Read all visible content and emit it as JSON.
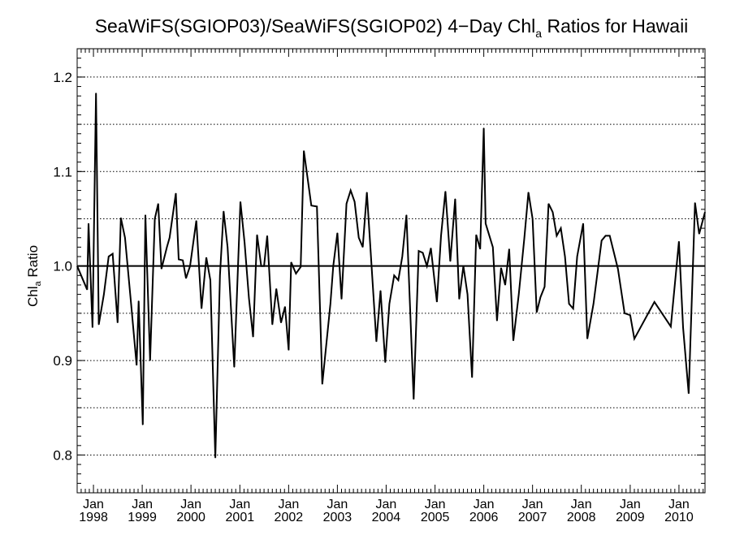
{
  "chart_data": {
    "type": "line",
    "title": {
      "prefix": "SeaWiFS(SGIOP03)/SeaWiFS(SGIOP02) 4−Day Chl",
      "subscript": "a",
      "suffix": " Ratios for Hawaii"
    },
    "ylabel": {
      "prefix": "Chl",
      "subscript": "a",
      "suffix": " Ratio"
    },
    "xlabel": "",
    "x_range": [
      "1997-09-01",
      "2010-07-15"
    ],
    "ylim": [
      0.76,
      1.23
    ],
    "y_ticks": [
      0.8,
      0.9,
      1.0,
      1.1,
      1.2
    ],
    "y_tick_labels": [
      "0.8",
      "0.9",
      "1.0",
      "1.1",
      "1.2"
    ],
    "x_ticks": [
      "1998-01-01",
      "1999-01-01",
      "2000-01-01",
      "2001-01-01",
      "2002-01-01",
      "2003-01-01",
      "2004-01-01",
      "2005-01-01",
      "2006-01-01",
      "2007-01-01",
      "2008-01-01",
      "2009-01-01",
      "2010-01-01"
    ],
    "x_tick_labels": [
      [
        "Jan",
        "1998"
      ],
      [
        "Jan",
        "1999"
      ],
      [
        "Jan",
        "2000"
      ],
      [
        "Jan",
        "2001"
      ],
      [
        "Jan",
        "2002"
      ],
      [
        "Jan",
        "2003"
      ],
      [
        "Jan",
        "2004"
      ],
      [
        "Jan",
        "2005"
      ],
      [
        "Jan",
        "2006"
      ],
      [
        "Jan",
        "2007"
      ],
      [
        "Jan",
        "2008"
      ],
      [
        "Jan",
        "2009"
      ],
      [
        "Jan",
        "2010"
      ]
    ],
    "grid": {
      "y_dotted": true,
      "y_minor": [
        0.85,
        0.95,
        1.05,
        1.15
      ],
      "x": false
    },
    "reference_line": 1.0,
    "series": [
      {
        "color": "#000000",
        "points": [
          [
            "1997-09-01",
            1.0
          ],
          [
            "1997-11-15",
            0.975
          ],
          [
            "1997-11-25",
            1.045
          ],
          [
            "1997-12-25",
            0.935
          ],
          [
            "1998-01-20",
            1.183
          ],
          [
            "1998-02-10",
            0.938
          ],
          [
            "1998-03-20",
            0.97
          ],
          [
            "1998-04-25",
            1.01
          ],
          [
            "1998-05-25",
            1.013
          ],
          [
            "1998-07-01",
            0.94
          ],
          [
            "1998-07-25",
            1.051
          ],
          [
            "1998-08-25",
            1.03
          ],
          [
            "1998-10-10",
            0.96
          ],
          [
            "1998-11-20",
            0.895
          ],
          [
            "1998-12-05",
            0.963
          ],
          [
            "1999-01-05",
            0.832
          ],
          [
            "1999-01-25",
            1.054
          ],
          [
            "1999-03-01",
            0.9
          ],
          [
            "1999-04-05",
            1.05
          ],
          [
            "1999-05-01",
            1.066
          ],
          [
            "1999-05-25",
            0.997
          ],
          [
            "1999-07-05",
            1.02
          ],
          [
            "1999-07-25",
            1.03
          ],
          [
            "1999-09-10",
            1.077
          ],
          [
            "1999-10-01",
            1.007
          ],
          [
            "1999-11-01",
            1.006
          ],
          [
            "1999-11-25",
            0.987
          ],
          [
            "1999-12-25",
            1.0
          ],
          [
            "2000-02-10",
            1.048
          ],
          [
            "2000-03-20",
            0.955
          ],
          [
            "2000-04-25",
            1.009
          ],
          [
            "2000-05-25",
            0.985
          ],
          [
            "2000-07-01",
            0.797
          ],
          [
            "2000-08-05",
            0.99
          ],
          [
            "2000-09-01",
            1.058
          ],
          [
            "2000-10-01",
            1.02
          ],
          [
            "2000-11-20",
            0.893
          ],
          [
            "2001-01-05",
            1.068
          ],
          [
            "2001-02-05",
            1.025
          ],
          [
            "2001-03-10",
            0.966
          ],
          [
            "2001-04-10",
            0.925
          ],
          [
            "2001-05-10",
            1.033
          ],
          [
            "2001-06-10",
            1.0
          ],
          [
            "2001-07-01",
            1.0
          ],
          [
            "2001-07-25",
            1.032
          ],
          [
            "2001-09-01",
            0.938
          ],
          [
            "2001-10-01",
            0.976
          ],
          [
            "2001-11-05",
            0.94
          ],
          [
            "2001-12-05",
            0.957
          ],
          [
            "2002-01-01",
            0.911
          ],
          [
            "2002-01-20",
            1.004
          ],
          [
            "2002-02-25",
            0.992
          ],
          [
            "2002-04-01",
            0.999
          ],
          [
            "2002-04-25",
            1.122
          ],
          [
            "2002-06-20",
            1.064
          ],
          [
            "2002-08-01",
            1.063
          ],
          [
            "2002-09-10",
            0.875
          ],
          [
            "2002-11-10",
            0.96
          ],
          [
            "2002-12-01",
            1.0
          ],
          [
            "2003-01-01",
            1.035
          ],
          [
            "2003-02-01",
            0.965
          ],
          [
            "2003-03-10",
            1.066
          ],
          [
            "2003-04-10",
            1.08
          ],
          [
            "2003-05-10",
            1.068
          ],
          [
            "2003-06-10",
            1.03
          ],
          [
            "2003-07-10",
            1.02
          ],
          [
            "2003-08-10",
            1.078
          ],
          [
            "2003-10-20",
            0.92
          ],
          [
            "2003-11-20",
            0.974
          ],
          [
            "2003-12-25",
            0.898
          ],
          [
            "2004-01-25",
            0.96
          ],
          [
            "2004-03-01",
            0.99
          ],
          [
            "2004-04-01",
            0.985
          ],
          [
            "2004-05-01",
            1.01
          ],
          [
            "2004-06-01",
            1.054
          ],
          [
            "2004-07-25",
            0.859
          ],
          [
            "2004-09-01",
            1.016
          ],
          [
            "2004-10-01",
            1.014
          ],
          [
            "2004-11-01",
            1.0
          ],
          [
            "2004-12-01",
            1.019
          ],
          [
            "2005-01-15",
            0.962
          ],
          [
            "2005-02-15",
            1.032
          ],
          [
            "2005-03-20",
            1.079
          ],
          [
            "2005-04-25",
            1.005
          ],
          [
            "2005-06-01",
            1.071
          ],
          [
            "2005-07-01",
            0.965
          ],
          [
            "2005-08-01",
            1.0
          ],
          [
            "2005-09-01",
            0.97
          ],
          [
            "2005-10-05",
            0.882
          ],
          [
            "2005-11-05",
            1.033
          ],
          [
            "2005-12-05",
            1.018
          ],
          [
            "2006-01-01",
            1.146
          ],
          [
            "2006-01-15",
            1.045
          ],
          [
            "2006-03-10",
            1.02
          ],
          [
            "2006-04-10",
            0.942
          ],
          [
            "2006-05-10",
            0.998
          ],
          [
            "2006-06-10",
            0.98
          ],
          [
            "2006-07-10",
            1.018
          ],
          [
            "2006-08-10",
            0.921
          ],
          [
            "2006-09-20",
            0.97
          ],
          [
            "2006-11-01",
            1.03
          ],
          [
            "2006-12-01",
            1.078
          ],
          [
            "2007-01-01",
            1.05
          ],
          [
            "2007-02-01",
            0.951
          ],
          [
            "2007-03-01",
            0.967
          ],
          [
            "2007-04-01",
            0.978
          ],
          [
            "2007-05-01",
            1.066
          ],
          [
            "2007-06-01",
            1.057
          ],
          [
            "2007-07-01",
            1.032
          ],
          [
            "2007-08-01",
            1.04
          ],
          [
            "2007-09-01",
            1.01
          ],
          [
            "2007-10-01",
            0.96
          ],
          [
            "2007-11-01",
            0.955
          ],
          [
            "2007-12-01",
            1.01
          ],
          [
            "2008-01-15",
            1.045
          ],
          [
            "2008-02-15",
            0.923
          ],
          [
            "2008-04-01",
            0.96
          ],
          [
            "2008-06-01",
            1.027
          ],
          [
            "2008-07-01",
            1.032
          ],
          [
            "2008-08-01",
            1.032
          ],
          [
            "2008-10-01",
            0.997
          ],
          [
            "2008-11-20",
            0.95
          ],
          [
            "2009-01-01",
            0.948
          ],
          [
            "2009-02-01",
            0.923
          ],
          [
            "2009-07-01",
            0.962
          ],
          [
            "2009-11-01",
            0.936
          ],
          [
            "2010-01-01",
            1.026
          ],
          [
            "2010-02-01",
            0.935
          ],
          [
            "2010-03-15",
            0.865
          ],
          [
            "2010-05-01",
            1.067
          ],
          [
            "2010-06-01",
            1.034
          ],
          [
            "2010-07-15",
            1.057
          ]
        ]
      }
    ]
  }
}
